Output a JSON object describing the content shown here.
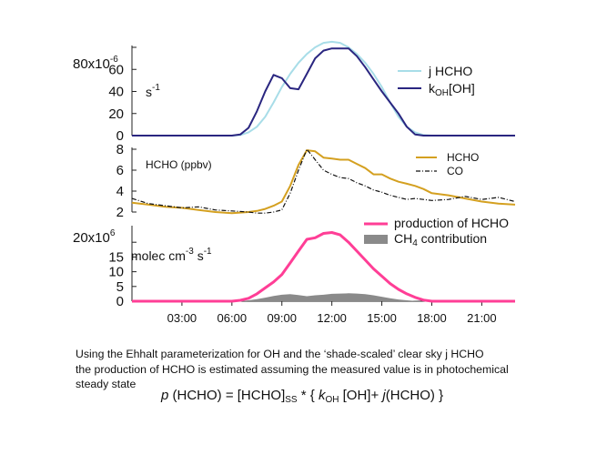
{
  "chart_data": [
    {
      "type": "line",
      "panel": "top",
      "title": "",
      "ylabel": "s-1",
      "y_exponent_label": "x10-6",
      "ylim": [
        0,
        80
      ],
      "yticks": [
        "0",
        "20",
        "40",
        "60",
        "80"
      ],
      "xlim": [
        0,
        23
      ],
      "x": [
        0,
        1,
        2,
        3,
        4,
        5,
        6,
        6.5,
        7,
        7.5,
        8,
        8.5,
        9,
        9.5,
        10,
        10.5,
        11,
        11.5,
        12,
        12.5,
        13,
        13.5,
        14,
        14.5,
        15,
        15.5,
        16,
        16.5,
        17,
        17.5,
        18,
        19,
        20,
        21,
        22,
        23
      ],
      "series": [
        {
          "name": "j HCHO",
          "color": "#a8dde8",
          "values": [
            0,
            0,
            0,
            0,
            0,
            0,
            0,
            0.5,
            3,
            8,
            17,
            30,
            44,
            56,
            66,
            74,
            80,
            84,
            85,
            84,
            80,
            74,
            66,
            56,
            44,
            30,
            17,
            8,
            3,
            0.5,
            0,
            0,
            0,
            0,
            0,
            0
          ]
        },
        {
          "name": "kOH[OH]",
          "color": "#2a2680",
          "values": [
            0,
            0,
            0,
            0,
            0,
            0,
            0,
            1,
            7,
            22,
            40,
            55,
            52,
            43,
            42,
            56,
            70,
            77,
            79,
            79,
            79,
            72,
            62,
            51,
            40,
            30,
            20,
            8,
            1,
            0,
            0,
            0,
            0,
            0,
            0,
            0
          ]
        }
      ],
      "legend": [
        "j HCHO",
        "kOH[OH]"
      ],
      "legend_position": "top-right"
    },
    {
      "type": "line",
      "panel": "middle",
      "ylabel": "HCHO (ppbv)",
      "ylim": [
        2,
        8
      ],
      "yticks": [
        "2",
        "4",
        "6",
        "8"
      ],
      "xlim": [
        0,
        23
      ],
      "x": [
        0,
        1,
        2,
        3,
        4,
        5,
        6,
        7,
        7.5,
        8,
        8.5,
        9,
        9.5,
        10,
        10.5,
        11,
        11.5,
        12,
        12.5,
        13,
        13.5,
        14,
        14.5,
        15,
        15.5,
        16,
        16.5,
        17,
        17.5,
        18,
        19,
        20,
        21,
        22,
        23
      ],
      "series": [
        {
          "name": "HCHO",
          "color": "#d4a020",
          "style": "solid",
          "values": [
            2.9,
            2.7,
            2.5,
            2.4,
            2.2,
            2.0,
            1.9,
            2.0,
            2.1,
            2.3,
            2.6,
            3.0,
            4.5,
            6.5,
            7.9,
            7.8,
            7.2,
            7.1,
            7.0,
            7.0,
            6.6,
            6.2,
            5.6,
            5.6,
            5.2,
            4.9,
            4.7,
            4.5,
            4.2,
            3.8,
            3.6,
            3.3,
            3.0,
            2.8,
            2.7
          ]
        },
        {
          "name": "CO",
          "color": "#111111",
          "style": "dashdot",
          "values": [
            3.3,
            2.8,
            2.6,
            2.4,
            2.5,
            2.2,
            2.1,
            2.0,
            1.9,
            1.9,
            2.0,
            2.2,
            3.8,
            6.0,
            8.0,
            7.0,
            6.0,
            5.6,
            5.3,
            5.2,
            4.8,
            4.5,
            4.1,
            3.9,
            3.6,
            3.4,
            3.2,
            3.3,
            3.2,
            3.1,
            3.2,
            3.5,
            3.2,
            3.4,
            3.0
          ]
        }
      ],
      "legend": [
        "HCHO",
        "CO"
      ],
      "legend_position": "top-right"
    },
    {
      "type": "area",
      "panel": "bottom",
      "ylabel": "molec cm-3 s-1",
      "y_exponent_label": "20x10^6",
      "ylim": [
        0,
        25
      ],
      "yticks": [
        "0",
        "5",
        "10",
        "15",
        "20"
      ],
      "xlim": [
        0,
        23
      ],
      "xticks": [
        "03:00",
        "06:00",
        "09:00",
        "12:00",
        "15:00",
        "18:00",
        "21:00"
      ],
      "xtick_values": [
        3,
        6,
        9,
        12,
        15,
        18,
        21
      ],
      "x": [
        0,
        1,
        2,
        3,
        4,
        5,
        6,
        6.5,
        7,
        7.5,
        8,
        8.5,
        9,
        9.5,
        10,
        10.5,
        11,
        11.5,
        12,
        12.5,
        13,
        13.5,
        14,
        14.5,
        15,
        15.5,
        16,
        16.5,
        17,
        17.5,
        18,
        18.5,
        19,
        20,
        21,
        22,
        23
      ],
      "series": [
        {
          "name": "production of HCHO",
          "color": "#ff3e96",
          "kind": "line",
          "values": [
            0,
            0,
            0,
            0,
            0,
            0,
            0,
            0.3,
            1,
            2.5,
            4.5,
            6.5,
            9,
            13,
            17,
            21,
            21.5,
            23,
            23.3,
            22.5,
            20,
            17,
            14,
            11,
            8.5,
            6,
            4,
            2.5,
            1.3,
            0.4,
            0,
            0,
            0,
            0,
            0,
            0,
            0
          ]
        },
        {
          "name": "CH4 contribution",
          "color": "#8a8a8a",
          "kind": "area",
          "values": [
            0,
            0,
            0,
            0,
            0,
            0,
            0,
            0,
            0.3,
            0.7,
            1.2,
            1.8,
            2.2,
            2.4,
            2.1,
            1.7,
            2.0,
            2.2,
            2.5,
            2.6,
            2.7,
            2.6,
            2.4,
            2.0,
            1.5,
            1.0,
            0.6,
            0.3,
            0.1,
            0,
            0,
            0,
            0,
            0,
            0,
            0,
            0
          ]
        }
      ],
      "legend": [
        "production of HCHO",
        "CH4 contribution"
      ],
      "legend_position": "top-right"
    }
  ],
  "caption": {
    "line1": "Using the Ehhalt parameterization for OH and the ‘shade-scaled’ clear sky j HCHO",
    "line2": "the production of HCHO is estimated assuming the measured value is in photochemical",
    "line3": "steady state"
  },
  "formula": {
    "p": "p",
    "part1": " (HCHO) = [HCHO]",
    "ss": "SS",
    "part2": " * { ",
    "k": "k",
    "oh": "OH",
    "part3": " [OH]+ ",
    "j": "j",
    "part4": "(HCHO) }"
  }
}
